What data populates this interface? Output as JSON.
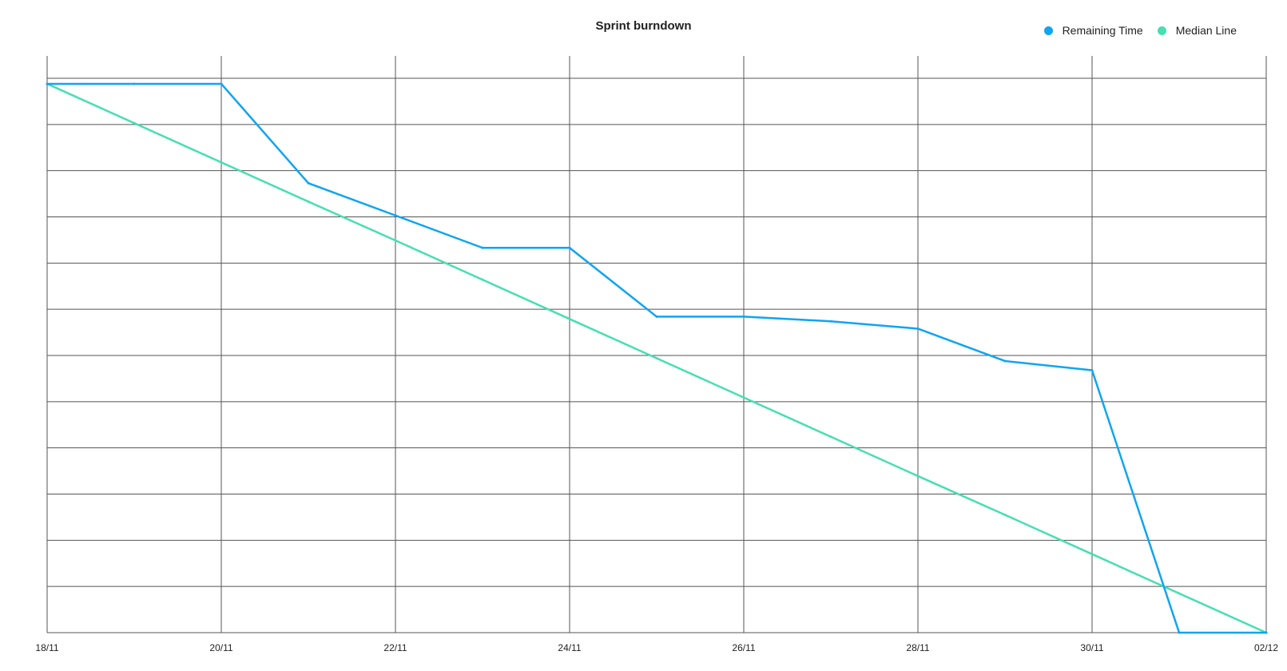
{
  "chart_data": {
    "type": "line",
    "title": "Sprint burndown",
    "xlabel": "",
    "ylabel": "",
    "x": [
      "18/11",
      "19/11",
      "20/11",
      "21/11",
      "22/11",
      "23/11",
      "24/11",
      "25/11",
      "26/11",
      "27/11",
      "28/11",
      "29/11",
      "30/11",
      "01/12",
      "02/12"
    ],
    "x_tick_labels": [
      "18/11",
      "20/11",
      "22/11",
      "24/11",
      "26/11",
      "28/11",
      "30/11",
      "02/12"
    ],
    "ylim": [
      0,
      12
    ],
    "y_grid_step": 1,
    "grid": true,
    "legend_position": "top-right",
    "series": [
      {
        "name": "Remaining Time",
        "color": "#0ea5f2",
        "values": [
          11.88,
          11.88,
          11.88,
          9.73,
          9.03,
          8.33,
          8.33,
          6.84,
          6.84,
          6.74,
          6.58,
          5.88,
          5.68,
          0,
          0
        ]
      },
      {
        "name": "Median Line",
        "color": "#46dfb1",
        "values": [
          11.88,
          11.03,
          10.18,
          9.33,
          8.49,
          7.64,
          6.79,
          5.94,
          5.09,
          4.24,
          3.39,
          2.55,
          1.7,
          0.85,
          0
        ]
      }
    ]
  }
}
